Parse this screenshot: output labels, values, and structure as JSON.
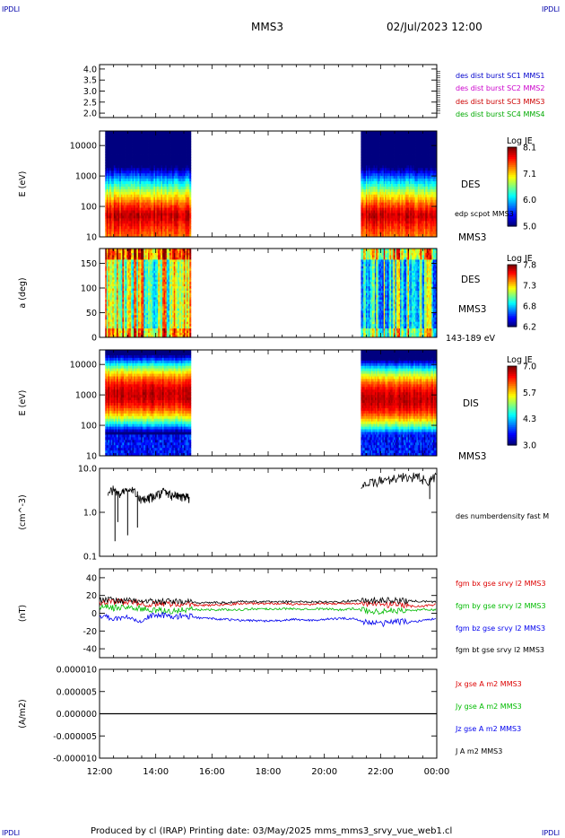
{
  "header": {
    "corner_left_top": "IPDLI",
    "corner_right_top": "IPDLI",
    "corner_left_bottom": "IPDLI",
    "corner_right_bottom": "IPDLI",
    "spacecraft": "MMS3",
    "date": "02/Jul/2023 12:00"
  },
  "footer": {
    "text": "Produced by cl (IRAP)   Printing date: 03/May/2025   mms_mms3_srvy_vue_web1.cl"
  },
  "chart_data": [
    {
      "type": "line",
      "panel": "burst-availability",
      "ylabel": "",
      "ylim": [
        1.8,
        4.2
      ],
      "yticks": [
        "4.0",
        "3.5",
        "3.0",
        "2.5",
        "2.0"
      ],
      "legend": [
        {
          "label": "des dist burst SC1 MMS1",
          "color": "#0000cc"
        },
        {
          "label": "des dist burst SC2 MMS2",
          "color": "#cc00cc"
        },
        {
          "label": "des dist burst SC3 MMS3",
          "color": "#cc0000"
        },
        {
          "label": "des dist burst SC4 MMS4",
          "color": "#00aa00"
        }
      ]
    },
    {
      "type": "heatmap",
      "panel": "electron-energy",
      "ylabel": "E (eV)",
      "yscale": "log",
      "ylim": [
        10,
        30000
      ],
      "yticks": [
        "10000",
        "1000",
        "100",
        "10"
      ],
      "coverage_hours": [
        [
          0.2,
          3.25
        ],
        [
          9.3,
          12.0
        ]
      ],
      "peak_energy_eV": [
        50,
        50
      ],
      "instrument": "DES",
      "spacecraft": "MMS3",
      "overlay_label": "edp scpot MMS3",
      "colorbar": {
        "title": "Log JE",
        "ticks": [
          "8.1",
          "7.1",
          "6.0",
          "5.0"
        ]
      }
    },
    {
      "type": "heatmap",
      "panel": "electron-pitch-angle",
      "ylabel": "a (deg)",
      "ylim": [
        0,
        180
      ],
      "yticks": [
        "150",
        "100",
        "50",
        "0"
      ],
      "coverage_hours": [
        [
          0.2,
          3.25
        ],
        [
          9.3,
          12.0
        ]
      ],
      "instrument": "DES",
      "spacecraft": "MMS3",
      "energy_range": "143-189 eV",
      "colorbar": {
        "title": "Log JE",
        "ticks": [
          "7.8",
          "7.3",
          "6.8",
          "6.2"
        ]
      }
    },
    {
      "type": "heatmap",
      "panel": "ion-energy",
      "ylabel": "E (eV)",
      "yscale": "log",
      "ylim": [
        10,
        30000
      ],
      "yticks": [
        "10000",
        "1000",
        "100",
        "10"
      ],
      "coverage_hours": [
        [
          0.2,
          3.25
        ],
        [
          9.3,
          12.0
        ]
      ],
      "peak_energy_eV": [
        1000,
        700
      ],
      "instrument": "DIS",
      "spacecraft": "MMS3",
      "colorbar": {
        "title": "Log JE",
        "ticks": [
          "7.0",
          "5.7",
          "4.3",
          "3.0"
        ]
      }
    },
    {
      "type": "line",
      "panel": "density",
      "ylabel": "(cm^-3)",
      "yscale": "log",
      "ylim": [
        0.1,
        10
      ],
      "yticks": [
        "10.0",
        "1.0",
        "0.1"
      ],
      "series": [
        {
          "name": "des numberdensity fast M",
          "color": "#000000",
          "segments": [
            {
              "x": [
                0.3,
                0.5,
                0.7,
                0.9,
                1.1,
                1.3,
                1.5,
                1.7,
                1.9,
                2.1,
                2.3,
                2.5,
                2.7,
                2.9,
                3.1,
                3.2
              ],
              "y": [
                3.1,
                3.3,
                2.5,
                3.0,
                3.2,
                2.9,
                1.8,
                2.0,
                2.2,
                2.6,
                2.9,
                2.5,
                2.4,
                2.2,
                2.4,
                2.1
              ]
            },
            {
              "x": [
                9.3,
                9.6,
                9.9,
                10.2,
                10.5,
                10.8,
                11.1,
                11.4,
                11.7,
                12.0
              ],
              "y": [
                4.3,
                4.5,
                5.0,
                5.6,
                6.0,
                6.3,
                6.5,
                6.1,
                5.0,
                6.5
              ]
            }
          ],
          "dips": [
            {
              "x": 0.55,
              "y": 0.22
            },
            {
              "x": 0.65,
              "y": 0.6
            },
            {
              "x": 1.0,
              "y": 0.3
            },
            {
              "x": 1.35,
              "y": 0.45
            },
            {
              "x": 11.75,
              "y": 2.0
            }
          ]
        }
      ]
    },
    {
      "type": "line",
      "panel": "magnetic-field",
      "ylabel": "(nT)",
      "ylim": [
        -50,
        50
      ],
      "yticks": [
        "40",
        "20",
        "0",
        "-20",
        "-40"
      ],
      "x": [
        0,
        0.5,
        1,
        1.5,
        2,
        2.5,
        3,
        3.5,
        4,
        4.5,
        5,
        5.5,
        6,
        6.5,
        7,
        7.5,
        8,
        8.5,
        9,
        9.5,
        10,
        10.5,
        11,
        11.5,
        12
      ],
      "series": [
        {
          "name": "fgm bx gse srvy l2 MMS3",
          "color": "#dd0000",
          "values": [
            12,
            13,
            12,
            11,
            10,
            11,
            10,
            9,
            9,
            10,
            11,
            11,
            11,
            11,
            10,
            10,
            11,
            11,
            11,
            10,
            10,
            9,
            8,
            8,
            10
          ]
        },
        {
          "name": "fgm by gse srvy l2 MMS3",
          "color": "#00bb00",
          "values": [
            8,
            6,
            7,
            5,
            3,
            2,
            4,
            4,
            4,
            4,
            4,
            5,
            5,
            5,
            5,
            5,
            5,
            4,
            5,
            3,
            2,
            3,
            3,
            4,
            4
          ]
        },
        {
          "name": "fgm bz gse srvy l2 MMS3",
          "color": "#0000ee",
          "values": [
            -2,
            -6,
            -4,
            -8,
            -1,
            -4,
            -3,
            -5,
            -6,
            -7,
            -8,
            -8,
            -9,
            -8,
            -7,
            -8,
            -7,
            -6,
            -6,
            -10,
            -12,
            -9,
            -10,
            -8,
            -6
          ]
        },
        {
          "name": "fgm bt gse srvy l2 MMS3",
          "color": "#000000",
          "values": [
            15,
            15,
            14,
            14,
            13,
            13,
            13,
            12,
            12,
            12,
            13,
            13,
            13,
            13,
            13,
            13,
            13,
            13,
            14,
            14,
            15,
            14,
            14,
            13,
            13
          ]
        }
      ]
    },
    {
      "type": "line",
      "panel": "current-density",
      "ylabel": "(A/m2)",
      "ylim": [
        -1e-05,
        1e-05
      ],
      "yticks": [
        "0.000010",
        "0.000005",
        "0.000000",
        "-0.000005",
        "-0.000010"
      ],
      "xticks": [
        "12:00",
        "14:00",
        "16:00",
        "18:00",
        "20:00",
        "22:00",
        "00:00"
      ],
      "series": [
        {
          "name": "Jx gse A m2 MMS3",
          "color": "#dd0000",
          "constant": 0
        },
        {
          "name": "Jy gse A m2 MMS3",
          "color": "#00bb00",
          "constant": 0
        },
        {
          "name": "Jz gse A m2 MMS3",
          "color": "#0000ee",
          "constant": 0
        },
        {
          "name": "J A m2 MMS3",
          "color": "#000000",
          "constant": 0
        }
      ]
    }
  ]
}
